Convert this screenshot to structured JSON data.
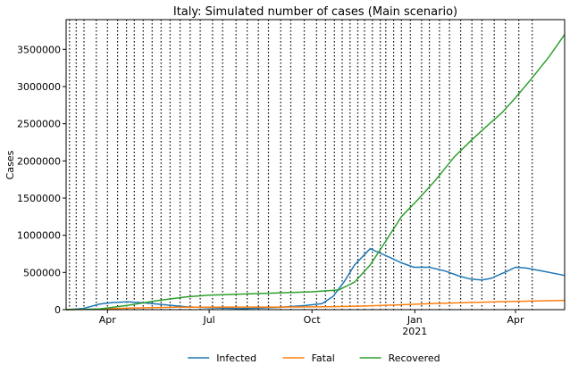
{
  "chart_data": {
    "type": "line",
    "title": "Italy: Simulated number of cases (Main scenario)",
    "xlabel": "",
    "ylabel": "Cases",
    "x_range": [
      "2020-02-24",
      "2021-05-15"
    ],
    "ylim": [
      0,
      3900000
    ],
    "y_ticks": [
      0,
      500000,
      1000000,
      1500000,
      2000000,
      2500000,
      3000000,
      3500000
    ],
    "y_tick_labels": [
      "0",
      "500000",
      "1000000",
      "1500000",
      "2000000",
      "2500000",
      "3000000",
      "3500000"
    ],
    "x_ticks": [
      {
        "date": "2020-04-01",
        "label": "Apr",
        "sublabel": ""
      },
      {
        "date": "2020-07-01",
        "label": "Jul",
        "sublabel": ""
      },
      {
        "date": "2020-10-01",
        "label": "Oct",
        "sublabel": ""
      },
      {
        "date": "2021-01-01",
        "label": "Jan",
        "sublabel": "2021"
      },
      {
        "date": "2021-04-01",
        "label": "Apr",
        "sublabel": ""
      }
    ],
    "change_dates": [
      "2020-02-27",
      "2020-03-04",
      "2020-03-11",
      "2020-03-22",
      "2020-04-01",
      "2020-04-10",
      "2020-04-18",
      "2020-04-25",
      "2020-05-03",
      "2020-05-11",
      "2020-05-19",
      "2020-05-27",
      "2020-06-05",
      "2020-06-14",
      "2020-06-23",
      "2020-07-04",
      "2020-07-13",
      "2020-07-25",
      "2020-08-04",
      "2020-08-14",
      "2020-08-23",
      "2020-09-03",
      "2020-09-12",
      "2020-09-24",
      "2020-10-05",
      "2020-10-13",
      "2020-10-21",
      "2020-10-28",
      "2020-11-04",
      "2020-11-11",
      "2020-11-17",
      "2020-11-24",
      "2020-12-01",
      "2020-12-06",
      "2020-12-13",
      "2020-12-20",
      "2020-12-28",
      "2021-01-07",
      "2021-01-14",
      "2021-01-23",
      "2021-02-01",
      "2021-02-11",
      "2021-02-21",
      "2021-03-02",
      "2021-03-13",
      "2021-03-23",
      "2021-04-04",
      "2021-04-16"
    ],
    "grid": false,
    "legend_position": "bottom-center",
    "series": [
      {
        "name": "Infected",
        "color": "#1f77b4",
        "points": [
          [
            "2020-02-24",
            0
          ],
          [
            "2020-03-10",
            15000
          ],
          [
            "2020-03-25",
            75000
          ],
          [
            "2020-04-05",
            95000
          ],
          [
            "2020-04-19",
            105000
          ],
          [
            "2020-05-01",
            95000
          ],
          [
            "2020-05-20",
            70000
          ],
          [
            "2020-06-10",
            40000
          ],
          [
            "2020-07-01",
            25000
          ],
          [
            "2020-08-01",
            15000
          ],
          [
            "2020-09-01",
            30000
          ],
          [
            "2020-09-25",
            55000
          ],
          [
            "2020-10-10",
            80000
          ],
          [
            "2020-10-20",
            180000
          ],
          [
            "2020-10-30",
            380000
          ],
          [
            "2020-11-08",
            600000
          ],
          [
            "2020-11-22",
            820000
          ],
          [
            "2020-11-28",
            780000
          ],
          [
            "2020-12-10",
            700000
          ],
          [
            "2020-12-20",
            630000
          ],
          [
            "2020-12-31",
            570000
          ],
          [
            "2021-01-14",
            570000
          ],
          [
            "2021-01-28",
            520000
          ],
          [
            "2021-02-10",
            450000
          ],
          [
            "2021-02-20",
            410000
          ],
          [
            "2021-03-02",
            400000
          ],
          [
            "2021-03-10",
            420000
          ],
          [
            "2021-03-25",
            520000
          ],
          [
            "2021-04-01",
            570000
          ],
          [
            "2021-04-10",
            560000
          ],
          [
            "2021-04-25",
            520000
          ],
          [
            "2021-05-15",
            460000
          ]
        ]
      },
      {
        "name": "Fatal",
        "color": "#ff7f0e",
        "points": [
          [
            "2020-02-24",
            0
          ],
          [
            "2020-03-20",
            5000
          ],
          [
            "2020-04-20",
            22000
          ],
          [
            "2020-06-01",
            32000
          ],
          [
            "2020-07-01",
            34000
          ],
          [
            "2020-09-01",
            35000
          ],
          [
            "2020-10-15",
            38000
          ],
          [
            "2020-11-15",
            48000
          ],
          [
            "2020-12-15",
            62000
          ],
          [
            "2021-01-15",
            80000
          ],
          [
            "2021-02-15",
            95000
          ],
          [
            "2021-03-15",
            105000
          ],
          [
            "2021-04-15",
            115000
          ],
          [
            "2021-05-15",
            125000
          ]
        ]
      },
      {
        "name": "Recovered",
        "color": "#2ca02c",
        "points": [
          [
            "2020-02-24",
            0
          ],
          [
            "2020-03-25",
            10000
          ],
          [
            "2020-04-20",
            60000
          ],
          [
            "2020-05-15",
            120000
          ],
          [
            "2020-06-10",
            170000
          ],
          [
            "2020-07-01",
            195000
          ],
          [
            "2020-08-01",
            210000
          ],
          [
            "2020-09-01",
            225000
          ],
          [
            "2020-10-01",
            240000
          ],
          [
            "2020-10-25",
            265000
          ],
          [
            "2020-11-08",
            370000
          ],
          [
            "2020-11-22",
            600000
          ],
          [
            "2020-12-05",
            900000
          ],
          [
            "2020-12-20",
            1250000
          ],
          [
            "2021-01-05",
            1500000
          ],
          [
            "2021-01-20",
            1750000
          ],
          [
            "2021-02-05",
            2050000
          ],
          [
            "2021-02-20",
            2270000
          ],
          [
            "2021-03-05",
            2450000
          ],
          [
            "2021-03-20",
            2650000
          ],
          [
            "2021-04-01",
            2850000
          ],
          [
            "2021-04-15",
            3100000
          ],
          [
            "2021-05-01",
            3400000
          ],
          [
            "2021-05-15",
            3700000
          ]
        ]
      }
    ]
  }
}
